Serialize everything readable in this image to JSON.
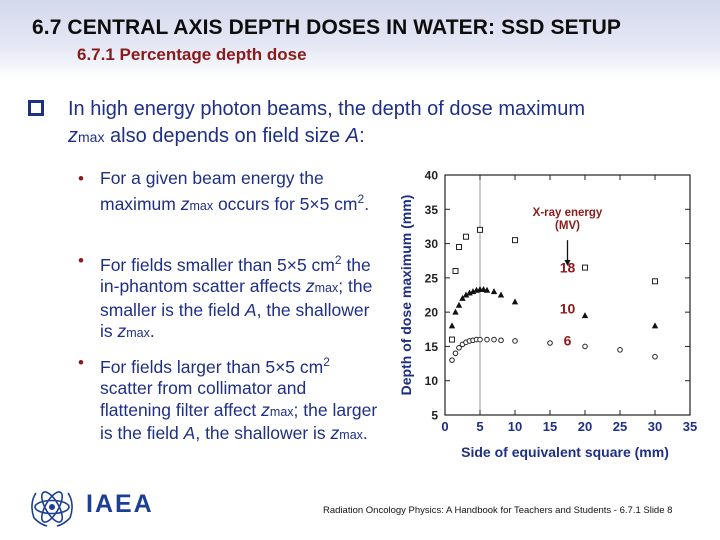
{
  "header": {
    "title": "6.7 CENTRAL AXIS DEPTH DOSES IN WATER: SSD SETUP",
    "subtitle": "6.7.1 Percentage depth dose"
  },
  "main_point": {
    "text_before": "In high energy photon beams, the depth of dose maximum",
    "var_z": "z",
    "var_sub": "max",
    "text_after": " also depends on field size ",
    "var_A": "A",
    "text_end": ":"
  },
  "bullets": [
    {
      "parts": [
        {
          "t": "For a given beam energy the maximum "
        },
        {
          "t": "z",
          "i": true
        },
        {
          "t": "max",
          "sub": true
        },
        {
          "t": " occurs for 5×5 cm"
        },
        {
          "t": "2",
          "sup": true
        },
        {
          "t": "."
        }
      ]
    },
    {
      "parts": [
        {
          "t": "For fields smaller than 5×5 cm"
        },
        {
          "t": "2",
          "sup": true
        },
        {
          "t": " the in-phantom scatter affects "
        },
        {
          "t": "z",
          "i": true
        },
        {
          "t": "max",
          "sub": true
        },
        {
          "t": "; the smaller is the field "
        },
        {
          "t": "A",
          "i": true
        },
        {
          "t": ", the shallower is "
        },
        {
          "t": "z",
          "i": true
        },
        {
          "t": "max",
          "sub": true
        },
        {
          "t": "."
        }
      ]
    },
    {
      "parts": [
        {
          "t": "For fields larger than 5×5 cm"
        },
        {
          "t": "2",
          "sup": true
        },
        {
          "t": " scatter from collimator and flattening filter affect "
        },
        {
          "t": "z",
          "i": true
        },
        {
          "t": "max",
          "sub": true
        },
        {
          "t": "; the larger is the field "
        },
        {
          "t": "A",
          "i": true
        },
        {
          "t": ", the shallower is "
        },
        {
          "t": "z",
          "i": true
        },
        {
          "t": "max",
          "sub": true
        },
        {
          "t": "."
        }
      ]
    }
  ],
  "chart_data": {
    "type": "scatter",
    "title": "",
    "xlabel": "Side of equivalent square (mm)",
    "ylabel": "Depth of dose maximum (mm)",
    "xlim": [
      0,
      35
    ],
    "ylim": [
      5,
      40
    ],
    "xticks": [
      0,
      5,
      10,
      15,
      20,
      25,
      30,
      35
    ],
    "yticks": [
      5,
      10,
      15,
      20,
      25,
      30,
      35,
      40
    ],
    "reference_line_x": 5,
    "annotation": "X-ray energy\n(MV)",
    "series": [
      {
        "name": "18",
        "marker": "open-square",
        "x": [
          1,
          1.5,
          2,
          3,
          5,
          10,
          20,
          30
        ],
        "y": [
          16,
          26,
          29.5,
          31,
          32,
          30.5,
          26.5,
          24.5
        ]
      },
      {
        "name": "10",
        "marker": "filled-triangle",
        "x": [
          1,
          1.5,
          2,
          2.5,
          3,
          3.5,
          4,
          4.5,
          5,
          5.5,
          6,
          7,
          8,
          10,
          20,
          30
        ],
        "y": [
          18,
          20,
          21,
          22,
          22.5,
          22.8,
          23,
          23.2,
          23.3,
          23.3,
          23.2,
          23,
          22.5,
          21.5,
          19.5,
          18
        ]
      },
      {
        "name": "6",
        "marker": "open-circle",
        "x": [
          1,
          1.5,
          2,
          2.5,
          3,
          3.5,
          4,
          4.5,
          5,
          6,
          7,
          8,
          10,
          15,
          20,
          25,
          30
        ],
        "y": [
          13,
          14,
          14.8,
          15.3,
          15.6,
          15.8,
          15.9,
          16,
          16,
          16,
          16,
          15.9,
          15.8,
          15.5,
          15,
          14.5,
          13.5
        ]
      }
    ]
  },
  "footer": {
    "logo_text": "IAEA",
    "citation": "Radiation Oncology Physics: A Handbook for Teachers and Students - 6.7.1 Slide 8"
  }
}
